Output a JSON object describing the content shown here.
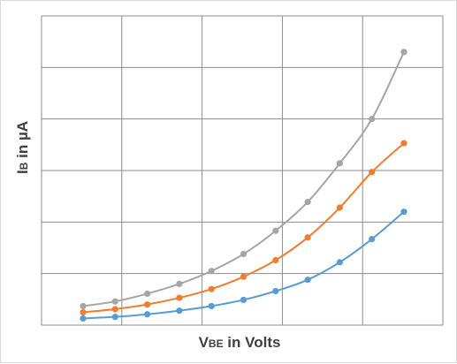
{
  "chart_data": {
    "type": "line",
    "xlabel": {
      "main": "V",
      "sub": "BE",
      "rest": " in Volts"
    },
    "ylabel": {
      "main": "I",
      "sub": "B",
      "rest": " in µA"
    },
    "tick_labels_shown": false,
    "grid": true,
    "legend": "none",
    "marker": "circle",
    "smooth": true,
    "x": [
      0,
      1,
      2,
      3,
      4,
      5,
      6,
      7,
      8,
      9,
      10
    ],
    "xlim": [
      0,
      10
    ],
    "ylim": [
      0,
      6
    ],
    "series": [
      {
        "color": "#5b9bd5",
        "values": [
          0.13,
          0.16,
          0.21,
          0.28,
          0.37,
          0.49,
          0.66,
          0.88,
          1.22,
          1.67,
          2.2
        ]
      },
      {
        "color": "#ed7d31",
        "values": [
          0.25,
          0.31,
          0.4,
          0.53,
          0.7,
          0.94,
          1.26,
          1.7,
          2.28,
          2.97,
          3.53
        ]
      },
      {
        "color": "#a5a5a5",
        "values": [
          0.37,
          0.46,
          0.61,
          0.8,
          1.05,
          1.38,
          1.83,
          2.39,
          3.14,
          4.0,
          5.3
        ]
      }
    ]
  }
}
